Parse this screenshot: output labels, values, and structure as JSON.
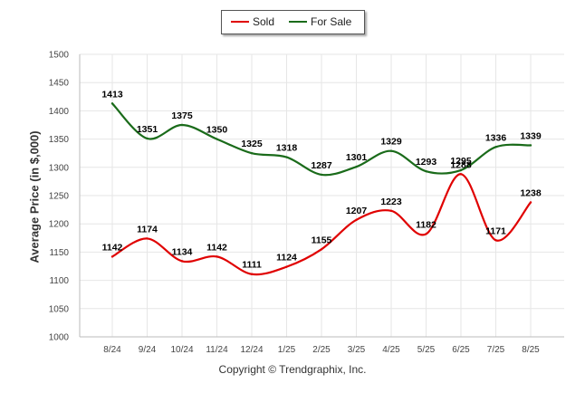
{
  "legend": {
    "sold_label": "Sold",
    "forsale_label": "For Sale"
  },
  "copyright": "Copyright © Trendgraphix, Inc.",
  "colors": {
    "sold": "#e00000",
    "for_sale": "#1a6b1a",
    "grid": "#e6e6e6",
    "axis": "#bbbbbb",
    "label": "#000000"
  },
  "chart_data": {
    "type": "line",
    "title": "",
    "xlabel": "",
    "ylabel": "Average Price (in $,000)",
    "categories": [
      "8/24",
      "9/24",
      "10/24",
      "11/24",
      "12/24",
      "1/25",
      "2/25",
      "3/25",
      "4/25",
      "5/25",
      "6/25",
      "7/25",
      "8/25"
    ],
    "ylim": [
      1000,
      1500
    ],
    "yticks": [
      1000,
      1050,
      1100,
      1150,
      1200,
      1250,
      1300,
      1350,
      1400,
      1450,
      1500
    ],
    "grid": true,
    "legend_position": "top-center",
    "series": [
      {
        "name": "Sold",
        "color": "#e00000",
        "values": [
          1142,
          1174,
          1134,
          1142,
          1111,
          1124,
          1155,
          1207,
          1223,
          1182,
          1288,
          1171,
          1238
        ]
      },
      {
        "name": "For Sale",
        "color": "#1a6b1a",
        "values": [
          1413,
          1351,
          1375,
          1350,
          1325,
          1318,
          1287,
          1301,
          1329,
          1293,
          1295,
          1336,
          1339
        ]
      }
    ]
  }
}
